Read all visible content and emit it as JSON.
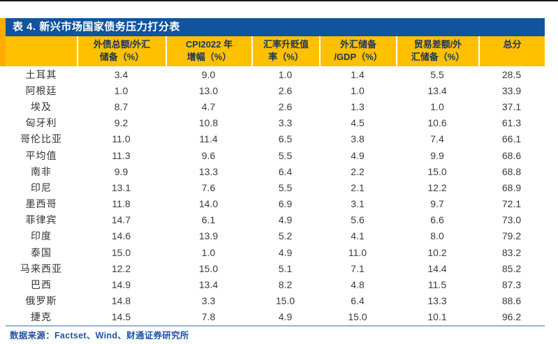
{
  "title": "表 4. 新兴市场国家债务压力打分表",
  "table": {
    "header": [
      {
        "line1": "",
        "line2": ""
      },
      {
        "line1": "外债总额/外汇",
        "line2": "储备（%）"
      },
      {
        "line1": "CPI2022 年",
        "line2": "增幅（%）"
      },
      {
        "line1": "汇率升贬值",
        "line2": "率（%）"
      },
      {
        "line1": "外汇储备",
        "line2": "/GDP（%）"
      },
      {
        "line1": "贸易差额/外",
        "line2": "汇储备（%）"
      },
      {
        "line1": "总分",
        "line2": ""
      }
    ],
    "rows": [
      {
        "country": "土耳其",
        "values": [
          "3.4",
          "9.0",
          "1.0",
          "1.4",
          "5.5",
          "28.5"
        ]
      },
      {
        "country": "阿根廷",
        "values": [
          "1.0",
          "13.0",
          "2.6",
          "1.0",
          "13.4",
          "33.9"
        ]
      },
      {
        "country": "埃及",
        "values": [
          "8.7",
          "4.7",
          "2.6",
          "1.3",
          "1.0",
          "37.1"
        ]
      },
      {
        "country": "匈牙利",
        "values": [
          "9.2",
          "10.8",
          "3.3",
          "4.5",
          "10.6",
          "61.3"
        ]
      },
      {
        "country": "哥伦比亚",
        "values": [
          "11.0",
          "11.4",
          "6.5",
          "3.8",
          "7.4",
          "66.1"
        ]
      },
      {
        "country": "平均值",
        "values": [
          "11.3",
          "9.6",
          "5.5",
          "4.9",
          "9.9",
          "68.6"
        ]
      },
      {
        "country": "南非",
        "values": [
          "9.9",
          "13.3",
          "6.4",
          "2.2",
          "15.0",
          "68.8"
        ]
      },
      {
        "country": "印尼",
        "values": [
          "13.1",
          "7.6",
          "5.5",
          "2.1",
          "12.2",
          "68.9"
        ]
      },
      {
        "country": "墨西哥",
        "values": [
          "11.8",
          "14.0",
          "6.9",
          "3.1",
          "9.7",
          "72.1"
        ]
      },
      {
        "country": "菲律宾",
        "values": [
          "14.7",
          "6.1",
          "4.9",
          "5.6",
          "6.6",
          "73.0"
        ]
      },
      {
        "country": "印度",
        "values": [
          "14.6",
          "13.9",
          "5.2",
          "4.1",
          "8.0",
          "79.2"
        ]
      },
      {
        "country": "泰国",
        "values": [
          "15.0",
          "1.0",
          "4.9",
          "11.0",
          "10.2",
          "83.2"
        ]
      },
      {
        "country": "马来西亚",
        "values": [
          "12.2",
          "15.0",
          "5.1",
          "7.1",
          "14.4",
          "85.2"
        ]
      },
      {
        "country": "巴西",
        "values": [
          "14.9",
          "13.4",
          "8.2",
          "4.8",
          "11.5",
          "87.3"
        ]
      },
      {
        "country": "俄罗斯",
        "values": [
          "14.8",
          "3.3",
          "15.0",
          "6.4",
          "13.3",
          "88.6"
        ]
      },
      {
        "country": "捷克",
        "values": [
          "14.5",
          "7.8",
          "4.9",
          "15.0",
          "10.1",
          "96.2"
        ]
      }
    ]
  },
  "footer": {
    "source": "数据来源：Factset、Wind、财通证券研究所"
  },
  "colors": {
    "title_bar_bg": "#11549E",
    "title_text": "#FFFFFF",
    "header_bg": "#FFC000",
    "header_text": "#17365D",
    "left_accent": "#FFAD00",
    "body_text": "#3A3A3A",
    "bottom_rule": "#94B3D9",
    "source_text": "#2153A3",
    "top_rule": "#161616"
  }
}
